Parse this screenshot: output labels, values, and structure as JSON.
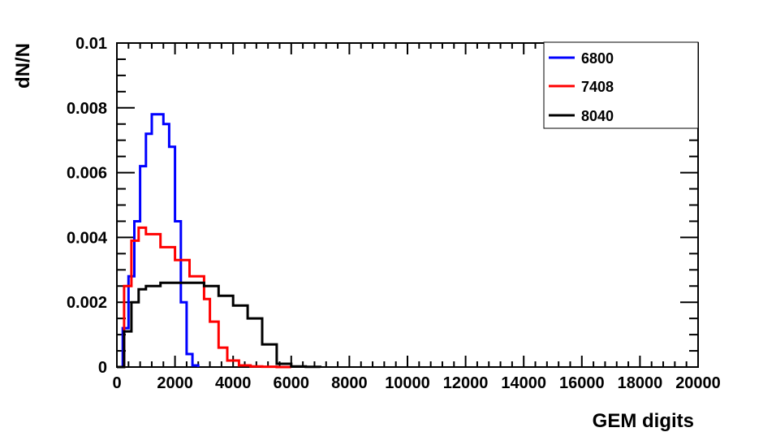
{
  "chart_data": {
    "type": "line",
    "title": "",
    "xlabel": "GEM digits",
    "ylabel": "dN/N",
    "xlim": [
      0,
      20000
    ],
    "ylim": [
      0,
      0.01
    ],
    "x_ticks": [
      "0",
      "2000",
      "4000",
      "6000",
      "8000",
      "10000",
      "12000",
      "14000",
      "16000",
      "18000",
      "20000"
    ],
    "y_ticks": [
      "0",
      "0.002",
      "0.004",
      "0.006",
      "0.008",
      "0.01"
    ],
    "grid": false,
    "legend_position": "top-right",
    "series": [
      {
        "name": "6800",
        "color": "#0000ff",
        "x": [
          0,
          200,
          400,
          600,
          800,
          1000,
          1200,
          1400,
          1600,
          1800,
          2000,
          2200,
          2400,
          2600,
          2800
        ],
        "y": [
          0,
          0.0012,
          0.0028,
          0.0045,
          0.0062,
          0.0072,
          0.0078,
          0.0078,
          0.0075,
          0.0068,
          0.0045,
          0.002,
          0.0004,
          5e-05,
          0
        ]
      },
      {
        "name": "7408",
        "color": "#ff0000",
        "x": [
          0,
          250,
          500,
          750,
          1000,
          1500,
          2000,
          2500,
          3000,
          3200,
          3500,
          3800,
          4200,
          4600,
          5000,
          5500,
          6000
        ],
        "y": [
          0,
          0.0025,
          0.0039,
          0.0043,
          0.0041,
          0.0037,
          0.0033,
          0.0028,
          0.0021,
          0.0014,
          0.0006,
          0.0002,
          5e-05,
          2e-05,
          1e-05,
          0,
          0
        ]
      },
      {
        "name": "8040",
        "color": "#000000",
        "x": [
          0,
          250,
          500,
          750,
          1000,
          1500,
          2000,
          2500,
          3000,
          3500,
          4000,
          4500,
          5000,
          5500,
          6000,
          6500,
          7000
        ],
        "y": [
          0,
          0.0011,
          0.002,
          0.0024,
          0.0025,
          0.0026,
          0.0026,
          0.0026,
          0.0025,
          0.0022,
          0.0019,
          0.0015,
          0.0007,
          0.0001,
          2e-05,
          5e-06,
          0
        ]
      }
    ]
  }
}
